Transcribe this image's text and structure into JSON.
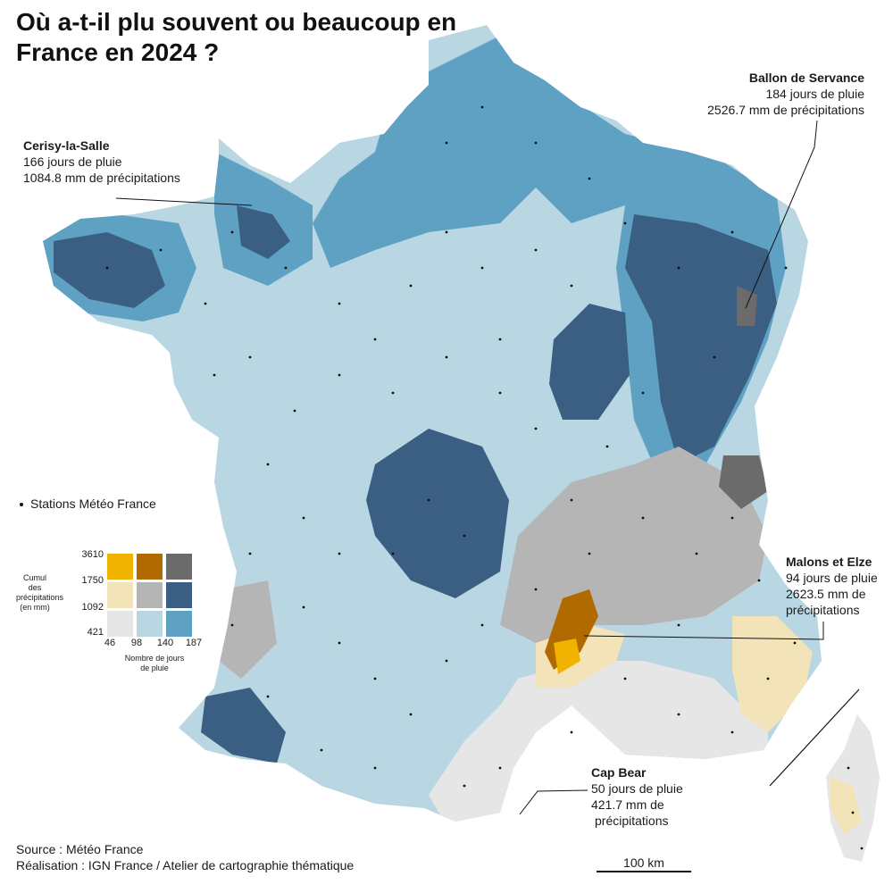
{
  "title": "Où a-t-il plu souvent ou beaucoup en France en 2024 ?",
  "annotations": {
    "cerisy": {
      "name": "Cerisy-la-Salle",
      "days": "166 jours de pluie",
      "precip": "1084.8 mm de précipitations"
    },
    "ballon": {
      "name": "Ballon de Servance",
      "days": "184 jours de pluie",
      "precip": "2526.7 mm de précipitations"
    },
    "malons": {
      "name": "Malons et Elze",
      "days": "94 jours de pluie",
      "precip_1": "2623.5 mm de",
      "precip_2": "précipitations"
    },
    "capbear": {
      "name": "Cap Bear",
      "days": "50 jours de pluie",
      "precip_1": "421.7 mm de",
      "precip_2": "précipitations"
    }
  },
  "legend": {
    "stations_label": "Stations Météo France",
    "y_title_lines": [
      "Cumul",
      "des",
      "précipitations",
      "(en mm)"
    ],
    "y_ticks": [
      "3610",
      "1750",
      "1092",
      "421"
    ],
    "x_ticks": [
      "46",
      "98",
      "140",
      "187"
    ],
    "x_title_lines": [
      "Nombre de jours",
      "de pluie"
    ],
    "colors": [
      [
        "#f0b400",
        "#b06a00",
        "#6b6b6b"
      ],
      [
        "#f2e4b8",
        "#b5b5b5",
        "#3a5f82"
      ],
      [
        "#e6e6e6",
        "#b9d6e3",
        "#5ea1c3"
      ]
    ]
  },
  "footer": {
    "source": "Source : Météo France",
    "realisation": "Réalisation : IGN France / Atelier de cartographie thématique"
  },
  "scale_label": "100 km",
  "palette": {
    "light_blue": "#b9d6e3",
    "mid_blue": "#5ea1c3",
    "dark_blue": "#3a5f82",
    "grey": "#b5b5b5",
    "dark_grey": "#6b6b6b",
    "light_grey": "#e6e6e6",
    "light_yellow": "#f2e4b8",
    "brown": "#b06a00",
    "gold": "#f0b400"
  }
}
